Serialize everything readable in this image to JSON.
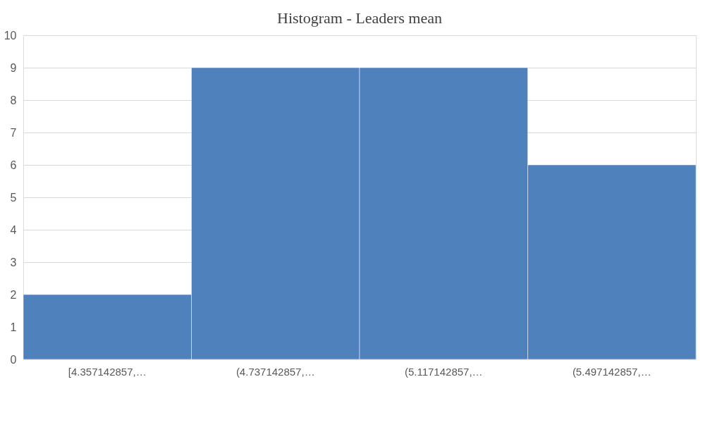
{
  "chart_data": {
    "type": "bar",
    "title": "Histogram - Leaders mean",
    "categories": [
      "[4.357142857,…",
      "(4.737142857,…",
      "(5.117142857,…",
      "(5.497142857,…"
    ],
    "values": [
      2,
      9,
      9,
      6
    ],
    "color": "#4f81bd",
    "ylim": [
      0,
      10
    ],
    "yticks": [
      0,
      1,
      2,
      3,
      4,
      5,
      6,
      7,
      8,
      9,
      10
    ],
    "grid": "y"
  }
}
